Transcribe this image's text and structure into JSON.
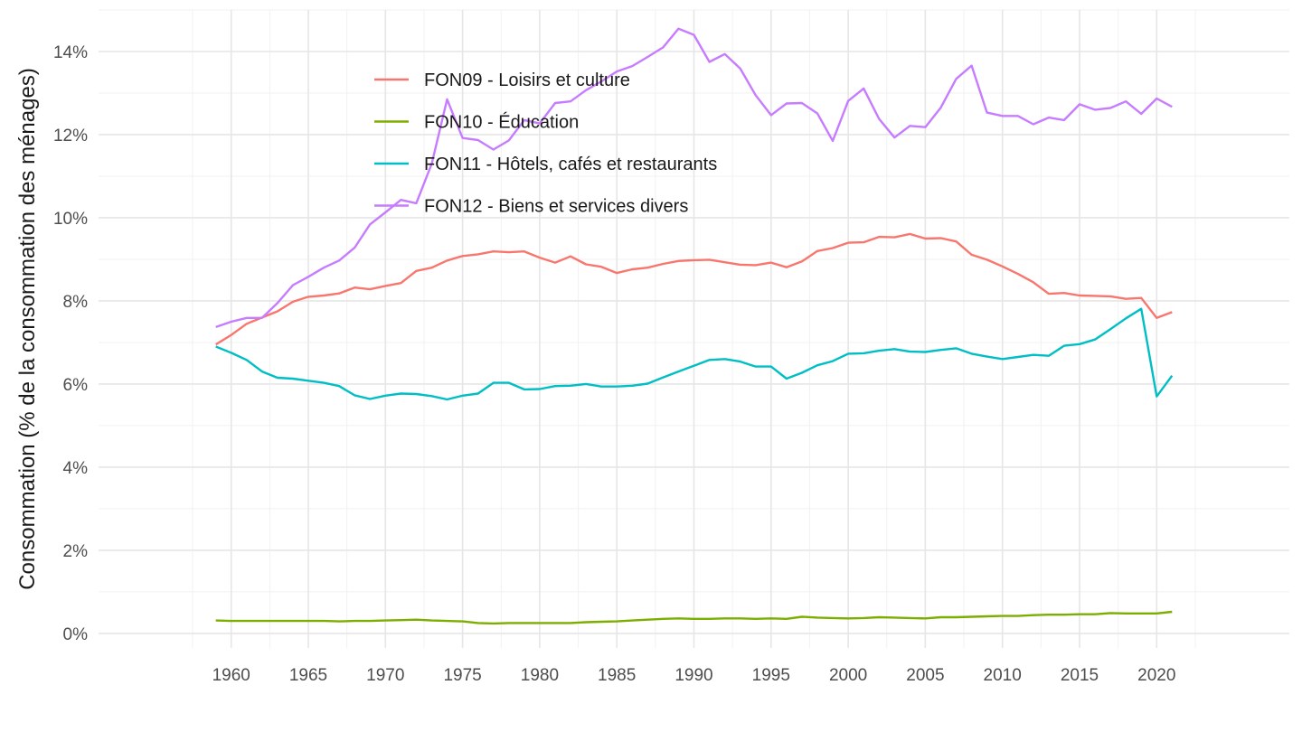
{
  "chart_data": {
    "type": "line",
    "title": "",
    "xlabel": "",
    "ylabel": "Consommation (% de la consommation des ménages)",
    "xlim": [
      1951.4,
      2028.6
    ],
    "ylim": [
      -0.35,
      15.0
    ],
    "x_ticks": [
      1960,
      1965,
      1970,
      1975,
      1980,
      1985,
      1990,
      1995,
      2000,
      2005,
      2010,
      2015,
      2020
    ],
    "x_tick_labels": [
      "1960",
      "1965",
      "1970",
      "1975",
      "1980",
      "1985",
      "1990",
      "1995",
      "2000",
      "2005",
      "2010",
      "2015",
      "2020"
    ],
    "y_ticks": [
      0,
      2,
      4,
      6,
      8,
      10,
      12,
      14
    ],
    "y_tick_labels": [
      "0%",
      "2%",
      "4%",
      "6%",
      "8%",
      "10%",
      "12%",
      "14%"
    ],
    "grid": true,
    "legend_position": "top-left inside",
    "x": [
      1959,
      1960,
      1961,
      1962,
      1963,
      1964,
      1965,
      1966,
      1967,
      1968,
      1969,
      1970,
      1971,
      1972,
      1973,
      1974,
      1975,
      1976,
      1977,
      1978,
      1979,
      1980,
      1981,
      1982,
      1983,
      1984,
      1985,
      1986,
      1987,
      1988,
      1989,
      1990,
      1991,
      1992,
      1993,
      1994,
      1995,
      1996,
      1997,
      1998,
      1999,
      2000,
      2001,
      2002,
      2003,
      2004,
      2005,
      2006,
      2007,
      2008,
      2009,
      2010,
      2011,
      2012,
      2013,
      2014,
      2015,
      2016,
      2017,
      2018,
      2019,
      2020,
      2021
    ],
    "series": [
      {
        "name": "FON09 - Loisirs et culture",
        "color": "#F8766D",
        "values": [
          6.95,
          7.18,
          7.45,
          7.6,
          7.75,
          7.98,
          8.1,
          8.13,
          8.18,
          8.32,
          8.28,
          8.36,
          8.43,
          8.72,
          8.8,
          8.97,
          9.08,
          9.12,
          9.19,
          9.17,
          9.19,
          9.04,
          8.92,
          9.07,
          8.88,
          8.82,
          8.67,
          8.76,
          8.8,
          8.89,
          8.96,
          8.98,
          8.99,
          8.93,
          8.87,
          8.86,
          8.92,
          8.81,
          8.95,
          9.2,
          9.27,
          9.4,
          9.41,
          9.54,
          9.53,
          9.61,
          9.5,
          9.51,
          9.43,
          9.11,
          8.99,
          8.83,
          8.65,
          8.45,
          8.17,
          8.19,
          8.13,
          8.12,
          8.11,
          8.05,
          8.07,
          7.59,
          7.73
        ]
      },
      {
        "name": "FON10 - Éducation",
        "color": "#7CAE00",
        "values": [
          0.31,
          0.3,
          0.3,
          0.3,
          0.3,
          0.3,
          0.3,
          0.3,
          0.29,
          0.3,
          0.3,
          0.31,
          0.32,
          0.33,
          0.31,
          0.3,
          0.29,
          0.25,
          0.24,
          0.25,
          0.25,
          0.25,
          0.25,
          0.25,
          0.27,
          0.28,
          0.29,
          0.31,
          0.33,
          0.35,
          0.36,
          0.35,
          0.35,
          0.36,
          0.36,
          0.35,
          0.36,
          0.35,
          0.4,
          0.38,
          0.37,
          0.36,
          0.37,
          0.39,
          0.38,
          0.37,
          0.36,
          0.39,
          0.39,
          0.4,
          0.41,
          0.42,
          0.42,
          0.44,
          0.45,
          0.45,
          0.46,
          0.46,
          0.49,
          0.48,
          0.48,
          0.48,
          0.52
        ]
      },
      {
        "name": "FON11 - Hôtels, cafés et restaurants",
        "color": "#00BFC4",
        "values": [
          6.9,
          6.75,
          6.58,
          6.3,
          6.15,
          6.13,
          6.08,
          6.03,
          5.95,
          5.73,
          5.64,
          5.72,
          5.77,
          5.76,
          5.71,
          5.63,
          5.72,
          5.77,
          6.03,
          6.03,
          5.87,
          5.88,
          5.95,
          5.96,
          6.0,
          5.94,
          5.94,
          5.96,
          6.01,
          6.16,
          6.3,
          6.44,
          6.58,
          6.6,
          6.54,
          6.42,
          6.42,
          6.13,
          6.27,
          6.45,
          6.55,
          6.73,
          6.74,
          6.8,
          6.84,
          6.78,
          6.77,
          6.82,
          6.86,
          6.73,
          6.66,
          6.6,
          6.65,
          6.7,
          6.68,
          6.92,
          6.96,
          7.07,
          7.32,
          7.58,
          7.81,
          5.7,
          6.2
        ]
      },
      {
        "name": "FON12 - Biens et services divers",
        "color": "#C77CFF",
        "values": [
          7.37,
          7.5,
          7.59,
          7.59,
          7.95,
          8.38,
          8.58,
          8.8,
          8.97,
          9.28,
          9.84,
          10.13,
          10.43,
          10.35,
          11.3,
          12.85,
          11.92,
          11.87,
          11.64,
          11.86,
          12.35,
          12.27,
          12.76,
          12.8,
          13.07,
          13.28,
          13.52,
          13.65,
          13.87,
          14.1,
          14.55,
          14.4,
          13.75,
          13.94,
          13.59,
          12.95,
          12.47,
          12.75,
          12.76,
          12.51,
          11.85,
          12.81,
          13.11,
          12.38,
          11.93,
          12.21,
          12.18,
          12.65,
          13.34,
          13.66,
          12.53,
          12.45,
          12.45,
          12.25,
          12.41,
          12.35,
          12.73,
          12.6,
          12.64,
          12.8,
          12.5,
          12.87,
          12.67
        ]
      }
    ]
  }
}
